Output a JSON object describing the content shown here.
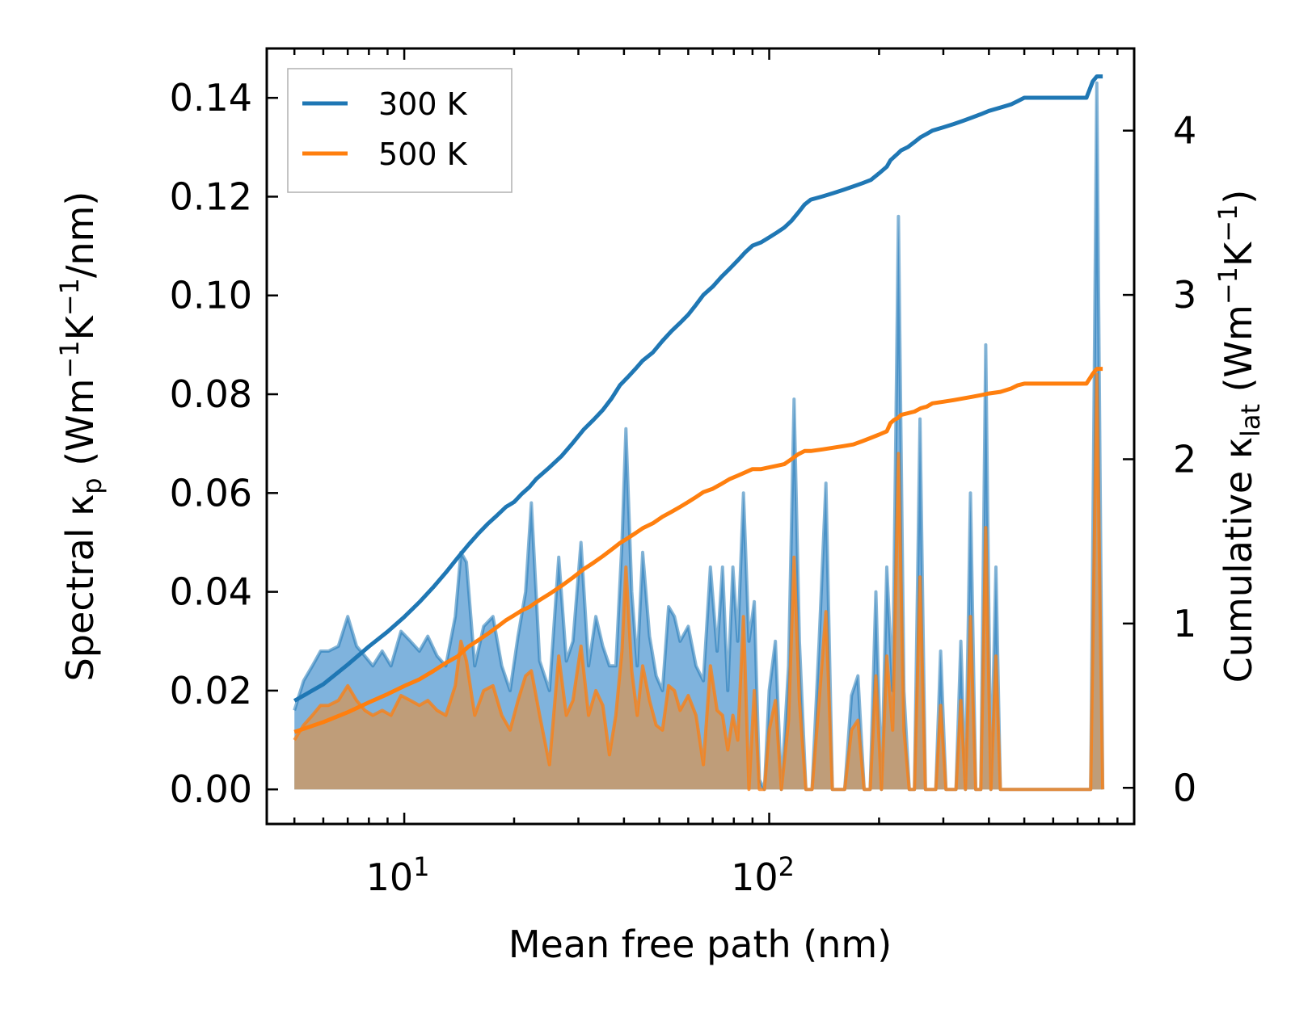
{
  "chart_data": {
    "type": "line",
    "x_scale": "log",
    "xlabel": "Mean free path (nm)",
    "ylabel_left": {
      "base": "Spectral κ",
      "sub": "p",
      "units_prefix": " (Wm",
      "sup1": "−1",
      "units_mid": "K",
      "sup2": "−1",
      "units_suffix": "/nm)"
    },
    "ylabel_right": {
      "base": "Cumulative κ",
      "sub": "lat",
      "units_prefix": " (Wm",
      "sup1": "−1",
      "units_mid": "K",
      "sup2": "−1",
      "units_suffix": ")"
    },
    "xlim": [
      4.2,
      1000
    ],
    "ylim_left": [
      -0.007,
      0.15
    ],
    "ylim_right": [
      -0.22,
      4.5
    ],
    "x_ticks": [
      {
        "value": 10,
        "base": "10",
        "exp": "1"
      },
      {
        "value": 100,
        "base": "10",
        "exp": "2"
      }
    ],
    "y_left_ticks": [
      "0.00",
      "0.02",
      "0.04",
      "0.06",
      "0.08",
      "0.10",
      "0.12",
      "0.14"
    ],
    "y_right_ticks": [
      "0",
      "1",
      "2",
      "3",
      "4"
    ],
    "legend": {
      "location": "top-left",
      "entries": [
        "300 K",
        "500 K"
      ]
    },
    "colors": {
      "t300": "#1f77b4",
      "t500": "#ff7f0e",
      "fill300": "#7fb3dd",
      "fill500": "#c69a6e"
    },
    "series": [
      {
        "name": "300 K",
        "axis": "left",
        "kind": "spectral_filled",
        "x": [
          5,
          5.3,
          5.6,
          5.9,
          6.2,
          6.6,
          7,
          7.4,
          7.8,
          8.2,
          8.7,
          9.2,
          9.8,
          10.4,
          11,
          11.6,
          12.3,
          13,
          13.8,
          14.3,
          14.8,
          15.6,
          16.5,
          17.5,
          18.5,
          19.5,
          20.5,
          21.5,
          22.3,
          23.5,
          25,
          26.5,
          27.8,
          29,
          30.5,
          32,
          33.5,
          35,
          36.5,
          38,
          39.5,
          40.5,
          42,
          43.5,
          45,
          47,
          49,
          51,
          53,
          55,
          57,
          60,
          63,
          66,
          69,
          72,
          74.5,
          77,
          79.5,
          82,
          85,
          88,
          91,
          94,
          97,
          100,
          104,
          108,
          113,
          117,
          121,
          126,
          131,
          137,
          143,
          149,
          155,
          161,
          168,
          175,
          182,
          189,
          196,
          203,
          210,
          218,
          226,
          234,
          242,
          250,
          259,
          268,
          277,
          286,
          295,
          305,
          315,
          325,
          335,
          345,
          356,
          368,
          380,
          392,
          405,
          418,
          430,
          443,
          458,
          475,
          495,
          520,
          560,
          620,
          700,
          760,
          790,
          820
        ],
        "values": [
          0.016,
          0.022,
          0.025,
          0.028,
          0.028,
          0.029,
          0.035,
          0.029,
          0.027,
          0.025,
          0.028,
          0.025,
          0.032,
          0.03,
          0.028,
          0.031,
          0.027,
          0.025,
          0.035,
          0.048,
          0.046,
          0.025,
          0.033,
          0.035,
          0.025,
          0.02,
          0.031,
          0.04,
          0.058,
          0.026,
          0.02,
          0.047,
          0.026,
          0.03,
          0.05,
          0.025,
          0.035,
          0.029,
          0.025,
          0.025,
          0.05,
          0.073,
          0.04,
          0.025,
          0.048,
          0.031,
          0.023,
          0.02,
          0.037,
          0.035,
          0.03,
          0.033,
          0.025,
          0.022,
          0.045,
          0.028,
          0.045,
          0.02,
          0.045,
          0.03,
          0.06,
          0.03,
          0.038,
          0.002,
          0.0,
          0.02,
          0.03,
          0.0,
          0.025,
          0.079,
          0.03,
          0.0,
          0.0,
          0.03,
          0.062,
          0.0,
          0.0,
          0.0,
          0.019,
          0.023,
          0.0,
          0.0,
          0.04,
          0.0,
          0.045,
          0.02,
          0.116,
          0.02,
          0.0,
          0.0,
          0.075,
          0.0,
          0.0,
          0.0,
          0.028,
          0.0,
          0.0,
          0.0,
          0.03,
          0.0,
          0.06,
          0.0,
          0.0,
          0.09,
          0.0,
          0.045,
          0.0,
          0.0,
          0.0,
          0.0,
          0.0,
          0.0,
          0.0,
          0.0,
          0.0,
          0.0,
          0.143,
          0.0
        ]
      },
      {
        "name": "500 K",
        "axis": "left",
        "kind": "spectral_filled",
        "x": [
          5,
          5.3,
          5.6,
          5.9,
          6.2,
          6.6,
          7,
          7.4,
          7.8,
          8.2,
          8.7,
          9.2,
          9.8,
          10.4,
          11,
          11.6,
          12.3,
          13,
          13.8,
          14.3,
          14.8,
          15.6,
          16.5,
          17.5,
          18.5,
          19.5,
          20.5,
          21.5,
          22.3,
          23.5,
          25,
          26.5,
          27.8,
          29,
          30.5,
          32,
          33.5,
          35,
          36.5,
          38,
          39.5,
          40.5,
          42,
          43.5,
          45,
          47,
          49,
          51,
          53,
          55,
          57,
          60,
          63,
          66,
          69,
          72,
          74.5,
          77,
          79.5,
          82,
          85,
          88,
          91,
          94,
          97,
          100,
          104,
          108,
          113,
          117,
          121,
          126,
          131,
          137,
          143,
          149,
          155,
          161,
          168,
          175,
          182,
          189,
          196,
          203,
          210,
          218,
          226,
          234,
          242,
          250,
          259,
          268,
          277,
          286,
          295,
          305,
          315,
          325,
          335,
          345,
          356,
          368,
          380,
          392,
          405,
          418,
          430,
          443,
          458,
          475,
          495,
          520,
          560,
          620,
          700,
          760,
          790,
          820
        ],
        "values": [
          0.01,
          0.013,
          0.015,
          0.017,
          0.017,
          0.018,
          0.021,
          0.018,
          0.016,
          0.015,
          0.016,
          0.015,
          0.019,
          0.018,
          0.017,
          0.018,
          0.016,
          0.015,
          0.021,
          0.03,
          0.026,
          0.015,
          0.02,
          0.021,
          0.015,
          0.012,
          0.018,
          0.023,
          0.024,
          0.015,
          0.005,
          0.027,
          0.015,
          0.018,
          0.029,
          0.015,
          0.02,
          0.017,
          0.007,
          0.015,
          0.028,
          0.045,
          0.024,
          0.015,
          0.025,
          0.018,
          0.013,
          0.012,
          0.021,
          0.02,
          0.016,
          0.019,
          0.015,
          0.005,
          0.025,
          0.016,
          0.015,
          0.008,
          0.015,
          0.01,
          0.035,
          0.0,
          0.02,
          0.0,
          0.0,
          0.012,
          0.018,
          0.0,
          0.014,
          0.047,
          0.018,
          0.0,
          0.0,
          0.018,
          0.036,
          0.0,
          0.0,
          0.0,
          0.012,
          0.014,
          0.0,
          0.0,
          0.023,
          0.0,
          0.027,
          0.012,
          0.068,
          0.012,
          0.0,
          0.0,
          0.043,
          0.0,
          0.0,
          0.0,
          0.017,
          0.0,
          0.0,
          0.0,
          0.018,
          0.0,
          0.035,
          0.0,
          0.0,
          0.053,
          0.0,
          0.027,
          0.0,
          0.0,
          0.0,
          0.0,
          0.0,
          0.0,
          0.0,
          0.0,
          0.0,
          0.0,
          0.084,
          0.0
        ]
      },
      {
        "name": "300 K",
        "axis": "right",
        "kind": "cumulative",
        "x": [
          5,
          6,
          7,
          8,
          9,
          10,
          11,
          12,
          13,
          14,
          15,
          16,
          17,
          18,
          19,
          20,
          21,
          22,
          23,
          25,
          27,
          29,
          31,
          33,
          35,
          37,
          39,
          41,
          43,
          45,
          48,
          51,
          54,
          57,
          60,
          63,
          66,
          70,
          74,
          78,
          82,
          86,
          90,
          95,
          100,
          105,
          110,
          115,
          120,
          125,
          130,
          140,
          150,
          160,
          170,
          180,
          190,
          200,
          210,
          215,
          220,
          225,
          230,
          240,
          250,
          260,
          270,
          280,
          300,
          320,
          340,
          360,
          380,
          400,
          430,
          460,
          480,
          500,
          560,
          620,
          680,
          740,
          770,
          790,
          820
        ],
        "values": [
          0.53,
          0.63,
          0.75,
          0.86,
          0.95,
          1.04,
          1.13,
          1.22,
          1.31,
          1.4,
          1.48,
          1.55,
          1.61,
          1.66,
          1.71,
          1.74,
          1.79,
          1.83,
          1.88,
          1.95,
          2.02,
          2.1,
          2.18,
          2.24,
          2.3,
          2.37,
          2.45,
          2.5,
          2.55,
          2.6,
          2.65,
          2.72,
          2.78,
          2.83,
          2.88,
          2.94,
          3.0,
          3.05,
          3.11,
          3.16,
          3.21,
          3.26,
          3.3,
          3.32,
          3.35,
          3.38,
          3.41,
          3.45,
          3.5,
          3.55,
          3.58,
          3.6,
          3.62,
          3.64,
          3.66,
          3.68,
          3.7,
          3.74,
          3.78,
          3.82,
          3.84,
          3.86,
          3.88,
          3.9,
          3.93,
          3.96,
          3.98,
          4.0,
          4.02,
          4.04,
          4.06,
          4.08,
          4.1,
          4.12,
          4.14,
          4.16,
          4.18,
          4.2,
          4.2,
          4.2,
          4.2,
          4.2,
          4.3,
          4.33,
          4.33
        ]
      },
      {
        "name": "500 K",
        "axis": "right",
        "kind": "cumulative",
        "x": [
          5,
          6,
          7,
          8,
          9,
          10,
          11,
          12,
          13,
          14,
          15,
          16,
          17,
          18,
          19,
          20,
          21,
          22,
          23,
          25,
          27,
          29,
          31,
          33,
          35,
          37,
          39,
          41,
          43,
          45,
          48,
          51,
          54,
          57,
          60,
          63,
          66,
          70,
          74,
          78,
          82,
          86,
          90,
          95,
          100,
          105,
          110,
          115,
          120,
          125,
          130,
          140,
          150,
          160,
          170,
          180,
          190,
          200,
          210,
          215,
          220,
          225,
          230,
          240,
          250,
          260,
          270,
          280,
          300,
          320,
          340,
          360,
          380,
          400,
          430,
          460,
          480,
          500,
          560,
          620,
          680,
          740,
          770,
          790,
          820
        ],
        "values": [
          0.34,
          0.4,
          0.46,
          0.52,
          0.57,
          0.62,
          0.66,
          0.71,
          0.76,
          0.8,
          0.86,
          0.9,
          0.94,
          0.98,
          1.02,
          1.05,
          1.08,
          1.1,
          1.13,
          1.18,
          1.23,
          1.28,
          1.33,
          1.37,
          1.41,
          1.45,
          1.49,
          1.52,
          1.55,
          1.58,
          1.61,
          1.65,
          1.68,
          1.71,
          1.74,
          1.77,
          1.8,
          1.82,
          1.85,
          1.88,
          1.9,
          1.92,
          1.94,
          1.94,
          1.95,
          1.96,
          1.97,
          2.0,
          2.03,
          2.05,
          2.05,
          2.06,
          2.07,
          2.08,
          2.09,
          2.11,
          2.13,
          2.15,
          2.17,
          2.22,
          2.24,
          2.25,
          2.27,
          2.28,
          2.29,
          2.31,
          2.32,
          2.34,
          2.35,
          2.36,
          2.37,
          2.38,
          2.39,
          2.4,
          2.41,
          2.43,
          2.45,
          2.46,
          2.46,
          2.46,
          2.46,
          2.46,
          2.52,
          2.55,
          2.55
        ]
      }
    ]
  }
}
